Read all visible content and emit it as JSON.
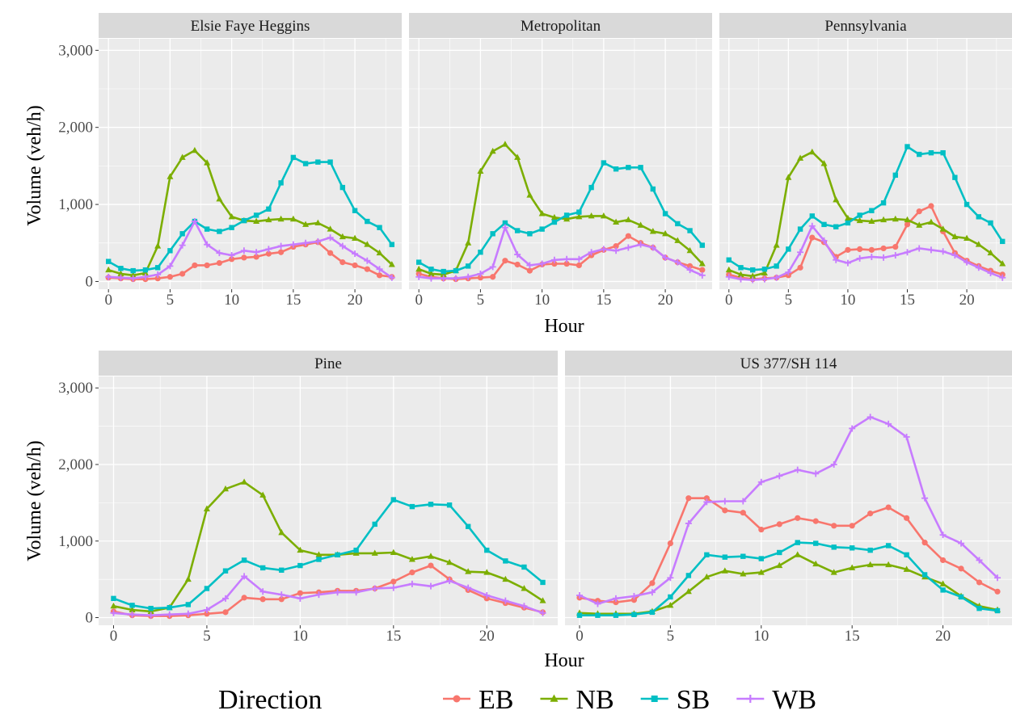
{
  "colors": {
    "EB": "#F8766D",
    "NB": "#7CAE00",
    "SB": "#00BFC4",
    "WB": "#C77CFF"
  },
  "y_axis_label": "Volume (veh/h)",
  "x_axis_label": "Hour",
  "legend": {
    "title": "Direction",
    "entries": [
      {
        "name": "EB",
        "marker": "circle"
      },
      {
        "name": "NB",
        "marker": "triangle"
      },
      {
        "name": "SB",
        "marker": "square"
      },
      {
        "name": "WB",
        "marker": "cross"
      }
    ]
  },
  "chart_data": [
    {
      "type": "line",
      "title": "Elsie Faye Heggins",
      "xlim": [
        -0.8,
        23.8
      ],
      "ylim": [
        -100,
        3150
      ],
      "x_ticks": [
        0,
        5,
        10,
        15,
        20
      ],
      "y_ticks": [
        0,
        1000,
        2000,
        3000
      ],
      "y_tick_labels": [
        "0",
        "1,000",
        "2,000",
        "3,000"
      ],
      "x": [
        0,
        1,
        2,
        3,
        4,
        5,
        6,
        7,
        8,
        9,
        10,
        11,
        12,
        13,
        14,
        15,
        16,
        17,
        18,
        19,
        20,
        21,
        22,
        23
      ],
      "series": [
        {
          "name": "EB",
          "values": [
            50,
            40,
            30,
            30,
            40,
            60,
            100,
            210,
            210,
            240,
            290,
            310,
            320,
            360,
            380,
            450,
            480,
            510,
            370,
            250,
            210,
            160,
            80,
            60
          ]
        },
        {
          "name": "NB",
          "values": [
            150,
            100,
            80,
            110,
            460,
            1360,
            1610,
            1700,
            1540,
            1070,
            840,
            790,
            780,
            800,
            810,
            810,
            740,
            760,
            680,
            580,
            560,
            480,
            370,
            220
          ]
        },
        {
          "name": "SB",
          "values": [
            260,
            170,
            140,
            150,
            180,
            400,
            620,
            780,
            680,
            650,
            700,
            790,
            860,
            940,
            1280,
            1610,
            1530,
            1550,
            1550,
            1220,
            920,
            780,
            700,
            480
          ]
        },
        {
          "name": "WB",
          "values": [
            60,
            50,
            40,
            60,
            90,
            200,
            470,
            780,
            480,
            370,
            340,
            400,
            380,
            420,
            460,
            480,
            500,
            520,
            570,
            460,
            360,
            270,
            160,
            50
          ]
        }
      ]
    },
    {
      "type": "line",
      "title": "Metropolitan",
      "xlim": [
        -0.8,
        23.8
      ],
      "ylim": [
        -100,
        3150
      ],
      "x_ticks": [
        0,
        5,
        10,
        15,
        20
      ],
      "y_ticks": [
        0,
        1000,
        2000,
        3000
      ],
      "y_tick_labels": [
        "0",
        "1,000",
        "2,000",
        "3,000"
      ],
      "x": [
        0,
        1,
        2,
        3,
        4,
        5,
        6,
        7,
        8,
        9,
        10,
        11,
        12,
        13,
        14,
        15,
        16,
        17,
        18,
        19,
        20,
        21,
        22,
        23
      ],
      "series": [
        {
          "name": "EB",
          "values": [
            100,
            60,
            40,
            30,
            40,
            50,
            60,
            270,
            220,
            140,
            220,
            230,
            230,
            210,
            340,
            410,
            460,
            590,
            500,
            440,
            310,
            250,
            200,
            150
          ]
        },
        {
          "name": "NB",
          "values": [
            160,
            100,
            90,
            140,
            500,
            1430,
            1690,
            1780,
            1610,
            1120,
            880,
            830,
            810,
            840,
            850,
            850,
            770,
            800,
            730,
            650,
            620,
            530,
            400,
            230
          ]
        },
        {
          "name": "SB",
          "values": [
            250,
            160,
            130,
            140,
            200,
            380,
            620,
            760,
            660,
            620,
            680,
            770,
            860,
            900,
            1220,
            1540,
            1460,
            1480,
            1480,
            1200,
            880,
            750,
            660,
            470
          ]
        },
        {
          "name": "WB",
          "values": [
            60,
            40,
            40,
            40,
            60,
            100,
            190,
            700,
            350,
            210,
            230,
            280,
            290,
            290,
            380,
            420,
            400,
            440,
            480,
            440,
            310,
            250,
            150,
            80
          ]
        }
      ]
    },
    {
      "type": "line",
      "title": "Pennsylvania",
      "xlim": [
        -0.8,
        23.8
      ],
      "ylim": [
        -100,
        3150
      ],
      "x_ticks": [
        0,
        5,
        10,
        15,
        20
      ],
      "y_ticks": [
        0,
        1000,
        2000,
        3000
      ],
      "y_tick_labels": [
        "0",
        "1,000",
        "2,000",
        "3,000"
      ],
      "x": [
        0,
        1,
        2,
        3,
        4,
        5,
        6,
        7,
        8,
        9,
        10,
        11,
        12,
        13,
        14,
        15,
        16,
        17,
        18,
        19,
        20,
        21,
        22,
        23
      ],
      "series": [
        {
          "name": "EB",
          "values": [
            90,
            50,
            30,
            40,
            50,
            80,
            180,
            570,
            510,
            320,
            410,
            420,
            410,
            430,
            450,
            740,
            910,
            980,
            650,
            370,
            270,
            200,
            140,
            90
          ]
        },
        {
          "name": "NB",
          "values": [
            150,
            90,
            70,
            110,
            470,
            1350,
            1600,
            1680,
            1530,
            1060,
            820,
            790,
            780,
            800,
            810,
            800,
            730,
            770,
            680,
            580,
            560,
            480,
            370,
            230
          ]
        },
        {
          "name": "SB",
          "values": [
            280,
            180,
            150,
            160,
            200,
            420,
            680,
            850,
            740,
            710,
            760,
            860,
            920,
            1020,
            1380,
            1750,
            1650,
            1670,
            1670,
            1350,
            1000,
            840,
            760,
            520
          ]
        },
        {
          "name": "WB",
          "values": [
            60,
            30,
            20,
            30,
            50,
            120,
            380,
            720,
            530,
            280,
            240,
            300,
            320,
            310,
            340,
            380,
            430,
            410,
            390,
            340,
            250,
            180,
            110,
            50
          ]
        }
      ]
    },
    {
      "type": "line",
      "title": "Pine",
      "xlim": [
        -0.8,
        23.8
      ],
      "ylim": [
        -100,
        3150
      ],
      "x_ticks": [
        0,
        5,
        10,
        15,
        20
      ],
      "y_ticks": [
        0,
        1000,
        2000,
        3000
      ],
      "y_tick_labels": [
        "0",
        "1,000",
        "2,000",
        "3,000"
      ],
      "x": [
        0,
        1,
        2,
        3,
        4,
        5,
        6,
        7,
        8,
        9,
        10,
        11,
        12,
        13,
        14,
        15,
        16,
        17,
        18,
        19,
        20,
        21,
        22,
        23
      ],
      "series": [
        {
          "name": "EB",
          "values": [
            80,
            30,
            20,
            20,
            30,
            50,
            70,
            260,
            240,
            240,
            320,
            330,
            350,
            350,
            380,
            470,
            590,
            680,
            500,
            360,
            250,
            190,
            130,
            70
          ]
        },
        {
          "name": "NB",
          "values": [
            150,
            100,
            80,
            130,
            500,
            1420,
            1680,
            1770,
            1600,
            1110,
            880,
            820,
            820,
            840,
            840,
            850,
            760,
            800,
            720,
            600,
            590,
            500,
            380,
            220
          ]
        },
        {
          "name": "SB",
          "values": [
            250,
            160,
            120,
            130,
            170,
            380,
            610,
            750,
            650,
            620,
            680,
            760,
            820,
            880,
            1220,
            1540,
            1450,
            1480,
            1470,
            1190,
            880,
            740,
            660,
            460
          ]
        },
        {
          "name": "WB",
          "values": [
            60,
            40,
            30,
            40,
            50,
            100,
            250,
            540,
            340,
            300,
            250,
            300,
            330,
            330,
            380,
            390,
            440,
            410,
            480,
            390,
            290,
            220,
            150,
            60
          ]
        }
      ]
    },
    {
      "type": "line",
      "title": "US 377/SH 114",
      "xlim": [
        -0.8,
        23.8
      ],
      "ylim": [
        -100,
        3150
      ],
      "x_ticks": [
        0,
        5,
        10,
        15,
        20
      ],
      "y_ticks": [
        0,
        1000,
        2000,
        3000
      ],
      "y_tick_labels": [
        "0",
        "1,000",
        "2,000",
        "3,000"
      ],
      "x": [
        0,
        1,
        2,
        3,
        4,
        5,
        6,
        7,
        8,
        9,
        10,
        11,
        12,
        13,
        14,
        15,
        16,
        17,
        18,
        19,
        20,
        21,
        22,
        23
      ],
      "series": [
        {
          "name": "EB",
          "values": [
            260,
            220,
            200,
            230,
            450,
            970,
            1560,
            1560,
            1400,
            1370,
            1150,
            1220,
            1300,
            1260,
            1200,
            1200,
            1360,
            1440,
            1300,
            980,
            750,
            640,
            460,
            340
          ]
        },
        {
          "name": "NB",
          "values": [
            60,
            50,
            50,
            50,
            80,
            160,
            340,
            530,
            610,
            570,
            590,
            680,
            820,
            700,
            590,
            650,
            690,
            690,
            630,
            530,
            440,
            280,
            150,
            100
          ]
        },
        {
          "name": "SB",
          "values": [
            30,
            30,
            30,
            40,
            70,
            270,
            550,
            820,
            790,
            800,
            770,
            850,
            980,
            970,
            920,
            910,
            880,
            940,
            820,
            560,
            360,
            270,
            120,
            90
          ]
        },
        {
          "name": "WB",
          "values": [
            290,
            180,
            250,
            280,
            330,
            520,
            1230,
            1510,
            1520,
            1520,
            1770,
            1850,
            1930,
            1880,
            2000,
            2470,
            2620,
            2530,
            2360,
            1560,
            1080,
            970,
            750,
            520
          ]
        }
      ]
    }
  ]
}
